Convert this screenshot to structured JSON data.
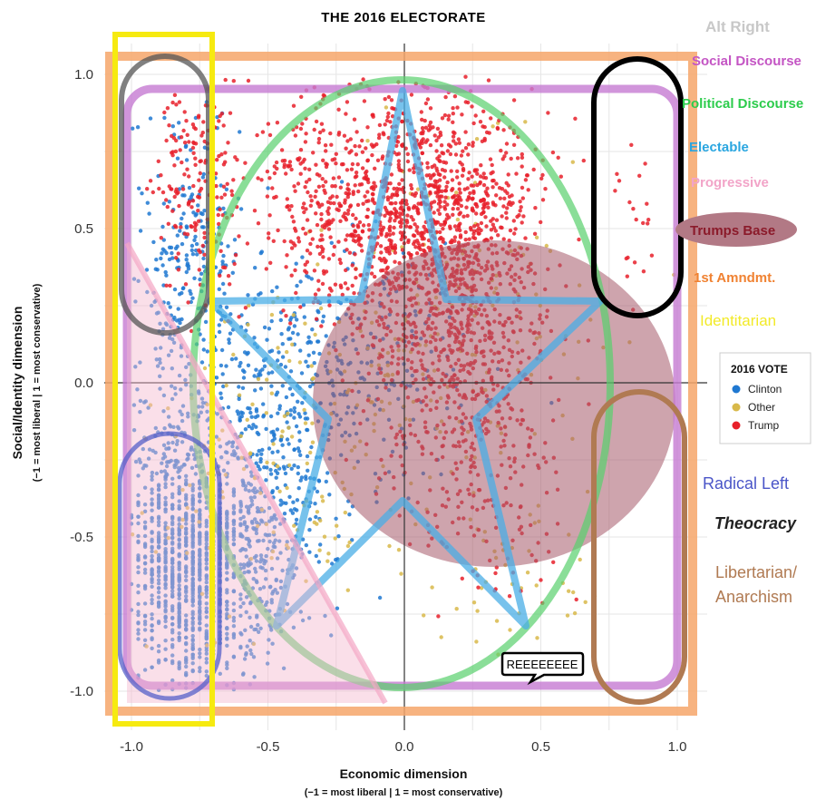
{
  "chart_data": {
    "type": "scatter",
    "title": "THE 2016 ELECTORATE",
    "xlabel": "Economic dimension",
    "xlabel_sub": "(−1 = most liberal | 1 = most conservative)",
    "ylabel": "Social/Identity dimension",
    "ylabel_sub": "(−1 = most liberal | 1 = most conservative)",
    "xlim": [
      -1.05,
      1.05
    ],
    "ylim": [
      -1.05,
      1.05
    ],
    "x_ticks": [
      "-1.0",
      "-0.5",
      "0.0",
      "0.5",
      "1.0"
    ],
    "y_ticks": [
      "1.0",
      "0.5",
      "0.0",
      "-0.5",
      "-1.0"
    ],
    "grid": true,
    "legend": {
      "title": "2016 VOTE",
      "placement": "right",
      "entries": [
        {
          "name": "Clinton",
          "color": "#1f78d1"
        },
        {
          "name": "Other",
          "color": "#d8b94a"
        },
        {
          "name": "Trump",
          "color": "#e8202a"
        }
      ]
    },
    "series": [
      {
        "name": "Clinton",
        "color": "#1f78d1",
        "clusters": [
          {
            "cx": -0.8,
            "cy": -0.6,
            "sx": 0.14,
            "sy": 0.3,
            "n": 900
          },
          {
            "cx": -0.6,
            "cy": -0.55,
            "sx": 0.2,
            "sy": 0.3,
            "n": 500
          },
          {
            "cx": -0.5,
            "cy": -0.1,
            "sx": 0.3,
            "sy": 0.35,
            "n": 450
          },
          {
            "cx": -0.8,
            "cy": 0.4,
            "sx": 0.15,
            "sy": 0.35,
            "n": 250
          },
          {
            "cx": -0.1,
            "cy": 0.1,
            "sx": 0.3,
            "sy": 0.25,
            "n": 150
          }
        ]
      },
      {
        "name": "Other",
        "color": "#d8b94a",
        "clusters": [
          {
            "cx": -0.4,
            "cy": -0.2,
            "sx": 0.4,
            "sy": 0.45,
            "n": 180
          },
          {
            "cx": 0.2,
            "cy": 0.2,
            "sx": 0.35,
            "sy": 0.4,
            "n": 140
          },
          {
            "cx": 0.4,
            "cy": -0.6,
            "sx": 0.2,
            "sy": 0.2,
            "n": 40
          }
        ]
      },
      {
        "name": "Trump",
        "color": "#e8202a",
        "clusters": [
          {
            "cx": 0.1,
            "cy": 0.55,
            "sx": 0.28,
            "sy": 0.3,
            "n": 1200
          },
          {
            "cx": 0.2,
            "cy": 0.05,
            "sx": 0.25,
            "sy": 0.3,
            "n": 500
          },
          {
            "cx": -0.75,
            "cy": 0.65,
            "sx": 0.12,
            "sy": 0.25,
            "n": 180
          },
          {
            "cx": -0.3,
            "cy": 0.6,
            "sx": 0.2,
            "sy": 0.25,
            "n": 250
          },
          {
            "cx": 0.3,
            "cy": -0.4,
            "sx": 0.2,
            "sy": 0.3,
            "n": 90
          },
          {
            "cx": 0.85,
            "cy": 0.5,
            "sx": 0.05,
            "sy": 0.2,
            "n": 20
          }
        ]
      }
    ]
  },
  "overlays": {
    "alt_right": {
      "label": "Alt Right",
      "color": "#c8c8c8"
    },
    "social_discourse": {
      "label": "Social Discourse",
      "color": "#c455c4"
    },
    "political_discourse": {
      "label": "Political Discourse",
      "color": "#2ccc4c"
    },
    "electable": {
      "label": "Electable",
      "color": "#2aa6e0"
    },
    "progressive": {
      "label": "Progressive",
      "color": "#f2a4c8"
    },
    "trumps_base": {
      "label": "Trumps Base",
      "color": "#8b1a2a",
      "fill": "#b27985"
    },
    "first_amendment": {
      "label": "1st Amndmt.",
      "color": "#f08232"
    },
    "identitarian": {
      "label": "Identitarian",
      "color": "#f2ea28"
    },
    "radical_left": {
      "label": "Radical Left",
      "color": "#4a55c8"
    },
    "theocracy": {
      "label": "Theocracy",
      "color": "#222222"
    },
    "libertarian": {
      "label1": "Libertarian/",
      "label2": "Anarchism",
      "color": "#b07a52"
    },
    "callout": {
      "label": "REEEEEEEE"
    }
  }
}
